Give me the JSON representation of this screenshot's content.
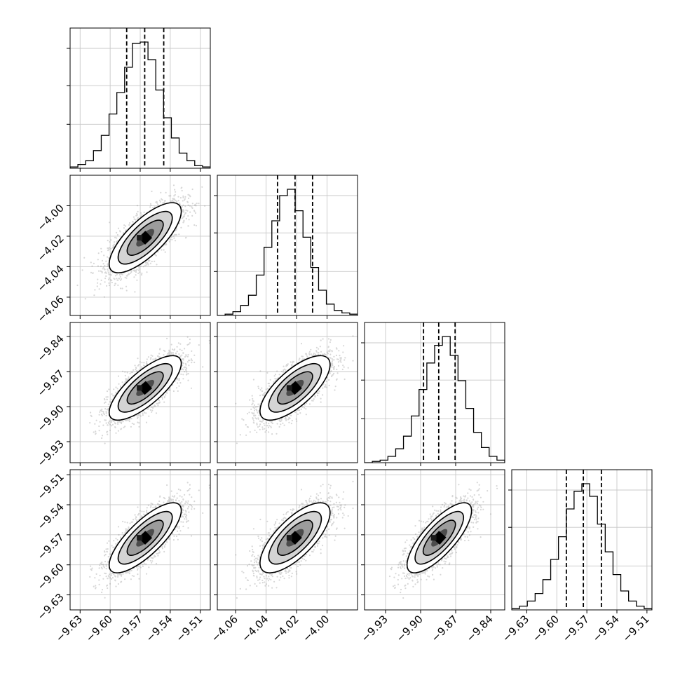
{
  "chart_data": {
    "type": "corner",
    "title": "",
    "grid": true,
    "n_params": 4,
    "params": [
      {
        "axis_range": [
          -9.64,
          -9.5
        ],
        "ticks": [
          -9.63,
          -9.6,
          -9.57,
          -9.54,
          -9.51
        ],
        "tick_labels": [
          "−9.63",
          "−9.60",
          "−9.57",
          "−9.54",
          "−9.51"
        ],
        "mean": -9.565,
        "std": 0.018,
        "quantiles": [
          -9.5835,
          -9.5655,
          -9.5465
        ]
      },
      {
        "axis_range": [
          -4.072,
          -3.98
        ],
        "ticks": [
          -4.06,
          -4.04,
          -4.02,
          -4.0
        ],
        "tick_labels": [
          "−4.06",
          "−4.04",
          "−4.02",
          "−4.00"
        ],
        "mean": -4.021,
        "std": 0.0115,
        "quantiles": [
          -4.0325,
          -4.021,
          -4.0095
        ]
      },
      {
        "axis_range": [
          -9.948,
          -9.828
        ],
        "ticks": [
          -9.93,
          -9.9,
          -9.87,
          -9.84
        ],
        "tick_labels": [
          "−9.93",
          "−9.90",
          "−9.87",
          "−9.84"
        ],
        "mean": -9.884,
        "std": 0.0138,
        "quantiles": [
          -9.8975,
          -9.8845,
          -9.8705
        ]
      },
      {
        "axis_range": [
          -9.645,
          -9.505
        ],
        "ticks": [
          -9.63,
          -9.6,
          -9.57,
          -9.54,
          -9.51
        ],
        "tick_labels": [
          "−9.63",
          "−9.60",
          "−9.57",
          "−9.54",
          "−9.51"
        ],
        "mean": -9.573,
        "std": 0.0175,
        "quantiles": [
          -9.5905,
          -9.5735,
          -9.5555
        ]
      }
    ],
    "histograms": [
      {
        "param": 0,
        "bin_range": [
          -9.64,
          -9.5
        ],
        "counts": [
          1,
          3,
          6,
          14,
          26,
          43,
          60,
          80,
          99,
          100,
          86,
          62,
          40,
          24,
          12,
          6,
          2,
          1
        ]
      },
      {
        "param": 1,
        "bin_range": [
          -4.072,
          -3.98
        ],
        "counts": [
          0,
          1,
          3,
          8,
          16,
          32,
          54,
          75,
          95,
          100,
          83,
          62,
          38,
          20,
          9,
          4,
          2,
          1
        ]
      },
      {
        "param": 2,
        "bin_range": [
          -9.948,
          -9.828
        ],
        "counts": [
          0,
          1,
          2,
          5,
          11,
          21,
          37,
          58,
          79,
          93,
          100,
          85,
          65,
          43,
          24,
          12,
          5,
          2
        ]
      },
      {
        "param": 3,
        "bin_range": [
          -9.645,
          -9.505
        ],
        "counts": [
          1,
          3,
          7,
          13,
          24,
          40,
          58,
          80,
          94,
          100,
          90,
          68,
          46,
          28,
          15,
          7,
          3,
          1
        ]
      }
    ],
    "correlations": [
      {
        "params": [
          0,
          1
        ],
        "rho": 0.75
      },
      {
        "params": [
          0,
          2
        ],
        "rho": 0.76
      },
      {
        "params": [
          1,
          2
        ],
        "rho": 0.72
      },
      {
        "params": [
          0,
          3
        ],
        "rho": 0.78
      },
      {
        "params": [
          1,
          3
        ],
        "rho": 0.72
      },
      {
        "params": [
          2,
          3
        ],
        "rho": 0.77
      }
    ],
    "contour_levels_sigma": [
      0.5,
      1.0,
      1.5,
      2.0
    ]
  }
}
